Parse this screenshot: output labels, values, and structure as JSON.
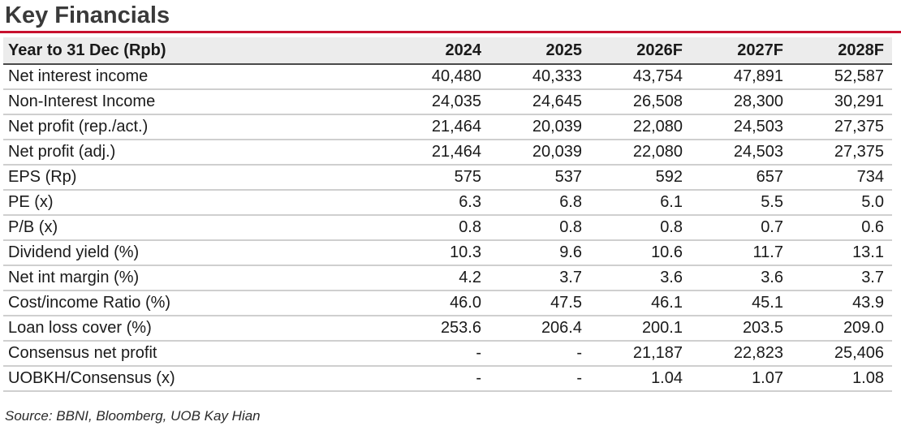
{
  "title": "Key Financials",
  "table": {
    "header": {
      "label": "Year to 31 Dec (Rpb)",
      "years": [
        "2024",
        "2025",
        "2026F",
        "2027F",
        "2028F"
      ]
    },
    "rows": [
      {
        "label": "Net interest income",
        "values": [
          "40,480",
          "40,333",
          "43,754",
          "47,891",
          "52,587"
        ]
      },
      {
        "label": "Non-Interest Income",
        "values": [
          "24,035",
          "24,645",
          "26,508",
          "28,300",
          "30,291"
        ]
      },
      {
        "label": "Net profit (rep./act.)",
        "values": [
          "21,464",
          "20,039",
          "22,080",
          "24,503",
          "27,375"
        ]
      },
      {
        "label": "Net profit (adj.)",
        "values": [
          "21,464",
          "20,039",
          "22,080",
          "24,503",
          "27,375"
        ]
      },
      {
        "label": "EPS (Rp)",
        "values": [
          "575",
          "537",
          "592",
          "657",
          "734"
        ]
      },
      {
        "label": "PE (x)",
        "values": [
          "6.3",
          "6.8",
          "6.1",
          "5.5",
          "5.0"
        ]
      },
      {
        "label": "P/B (x)",
        "values": [
          "0.8",
          "0.8",
          "0.8",
          "0.7",
          "0.6"
        ]
      },
      {
        "label": "Dividend yield (%)",
        "values": [
          "10.3",
          "9.6",
          "10.6",
          "11.7",
          "13.1"
        ]
      },
      {
        "label": "Net int margin (%)",
        "values": [
          "4.2",
          "3.7",
          "3.6",
          "3.6",
          "3.7"
        ]
      },
      {
        "label": "Cost/income Ratio (%)",
        "values": [
          "46.0",
          "47.5",
          "46.1",
          "45.1",
          "43.9"
        ]
      },
      {
        "label": "Loan loss cover (%)",
        "values": [
          "253.6",
          "206.4",
          "200.1",
          "203.5",
          "209.0"
        ]
      },
      {
        "label": "Consensus net profit",
        "values": [
          "-",
          "-",
          "21,187",
          "22,823",
          "25,406"
        ]
      },
      {
        "label": "UOBKH/Consensus (x)",
        "values": [
          "-",
          "-",
          "1.04",
          "1.07",
          "1.08"
        ]
      }
    ]
  },
  "source": "Source: BBNI, Bloomberg, UOB Kay Hian"
}
